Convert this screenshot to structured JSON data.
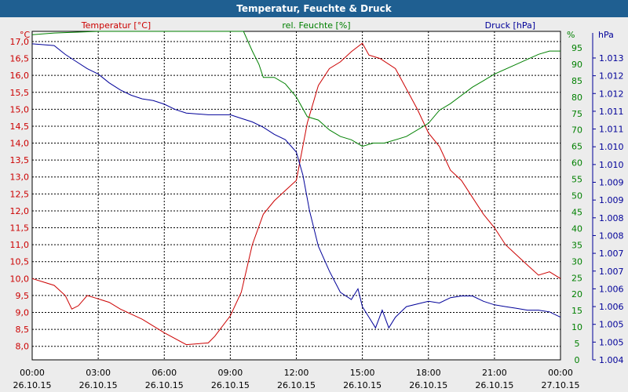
{
  "title": "Temperatur, Feuchte & Druck",
  "colors": {
    "temperature": "#cc0000",
    "humidity": "#008000",
    "pressure": "#000099",
    "titlebar": "#1f5f91",
    "background": "#ececec",
    "plot": "#ffffff"
  },
  "chart_data": {
    "type": "line",
    "title": "Temperatur, Feuchte & Druck",
    "x_ticks": [
      {
        "time": "00:00",
        "date": "26.10.15",
        "h": 0
      },
      {
        "time": "03:00",
        "date": "26.10.15",
        "h": 3
      },
      {
        "time": "06:00",
        "date": "26.10.15",
        "h": 6
      },
      {
        "time": "09:00",
        "date": "26.10.15",
        "h": 9
      },
      {
        "time": "12:00",
        "date": "26.10.15",
        "h": 12
      },
      {
        "time": "15:00",
        "date": "26.10.15",
        "h": 15
      },
      {
        "time": "18:00",
        "date": "26.10.15",
        "h": 18
      },
      {
        "time": "21:00",
        "date": "26.10.15",
        "h": 21
      },
      {
        "time": "00:00",
        "date": "27.10.15",
        "h": 24
      }
    ],
    "grid": true,
    "axes": {
      "temperature": {
        "label": "Temperatur [°C]",
        "unit": "°C",
        "side": "left",
        "ylim": [
          7.6,
          17.3
        ],
        "ticks": [
          "8,0",
          "8,5",
          "9,0",
          "9,5",
          "10,0",
          "10,5",
          "11,0",
          "11,5",
          "12,0",
          "12,5",
          "13,0",
          "13,5",
          "14,0",
          "14,5",
          "15,0",
          "15,5",
          "16,0",
          "16,5",
          "17,0"
        ]
      },
      "humidity": {
        "label": "rel. Feuchte [%]",
        "unit": "%",
        "side": "right",
        "ylim": [
          0,
          100
        ],
        "ticks": [
          "0",
          "5",
          "10",
          "15",
          "20",
          "25",
          "30",
          "35",
          "40",
          "45",
          "50",
          "55",
          "60",
          "65",
          "70",
          "75",
          "80",
          "85",
          "90",
          "95"
        ]
      },
      "pressure": {
        "label": "Druck [hPa]",
        "unit": "hPa",
        "side": "right",
        "ylim": [
          1004,
          1013.25
        ],
        "ticks": [
          "1.004",
          "1.005",
          "1.005",
          "1.006",
          "1.006",
          "1.007",
          "1.007",
          "1.008",
          "1.008",
          "1.009",
          "1.009",
          "1.010",
          "1.010",
          "1.011",
          "1.011",
          "1.012",
          "1.012",
          "1.013"
        ]
      }
    },
    "series": [
      {
        "name": "Temperatur [°C]",
        "axis": "temperature",
        "points": [
          [
            0,
            10.0
          ],
          [
            0.5,
            9.9
          ],
          [
            1.0,
            9.8
          ],
          [
            1.5,
            9.5
          ],
          [
            1.8,
            9.1
          ],
          [
            2.1,
            9.2
          ],
          [
            2.5,
            9.5
          ],
          [
            3.0,
            9.4
          ],
          [
            3.5,
            9.3
          ],
          [
            4.0,
            9.1
          ],
          [
            5.0,
            8.8
          ],
          [
            6.0,
            8.4
          ],
          [
            7.0,
            8.05
          ],
          [
            8.0,
            8.1
          ],
          [
            8.3,
            8.3
          ],
          [
            9.0,
            8.9
          ],
          [
            9.5,
            9.6
          ],
          [
            10.0,
            11.0
          ],
          [
            10.5,
            11.9
          ],
          [
            11.0,
            12.3
          ],
          [
            11.5,
            12.6
          ],
          [
            12.0,
            12.9
          ],
          [
            12.5,
            14.6
          ],
          [
            13.0,
            15.7
          ],
          [
            13.5,
            16.2
          ],
          [
            14.0,
            16.4
          ],
          [
            14.5,
            16.7
          ],
          [
            15.0,
            16.95
          ],
          [
            15.3,
            16.6
          ],
          [
            15.8,
            16.5
          ],
          [
            16.5,
            16.2
          ],
          [
            17.0,
            15.6
          ],
          [
            17.5,
            15.0
          ],
          [
            18.0,
            14.3
          ],
          [
            18.5,
            13.9
          ],
          [
            19.0,
            13.2
          ],
          [
            19.5,
            12.9
          ],
          [
            20.0,
            12.4
          ],
          [
            20.5,
            11.9
          ],
          [
            21.0,
            11.5
          ],
          [
            21.5,
            11.0
          ],
          [
            22.0,
            10.7
          ],
          [
            22.5,
            10.4
          ],
          [
            23.0,
            10.1
          ],
          [
            23.5,
            10.2
          ],
          [
            24.0,
            10.0
          ]
        ]
      },
      {
        "name": "rel. Feuchte [%]",
        "axis": "humidity",
        "points": [
          [
            0,
            99
          ],
          [
            1.0,
            99.5
          ],
          [
            3.0,
            100
          ],
          [
            6.0,
            100
          ],
          [
            9.0,
            100
          ],
          [
            9.6,
            100
          ],
          [
            10.0,
            94
          ],
          [
            10.3,
            90
          ],
          [
            10.5,
            86
          ],
          [
            11.0,
            86
          ],
          [
            11.5,
            84
          ],
          [
            12.0,
            80
          ],
          [
            12.5,
            74
          ],
          [
            13.0,
            73
          ],
          [
            13.5,
            70
          ],
          [
            14.0,
            68
          ],
          [
            14.5,
            67
          ],
          [
            15.0,
            65
          ],
          [
            15.5,
            66
          ],
          [
            16.0,
            66
          ],
          [
            17.0,
            68
          ],
          [
            18.0,
            72
          ],
          [
            18.5,
            76
          ],
          [
            19.0,
            78
          ],
          [
            20.0,
            83
          ],
          [
            20.5,
            85
          ],
          [
            21.0,
            87
          ],
          [
            22.0,
            90
          ],
          [
            23.0,
            93
          ],
          [
            23.5,
            94
          ],
          [
            24.0,
            94
          ]
        ]
      },
      {
        "name": "Druck [hPa]",
        "axis": "pressure",
        "points": [
          [
            0,
            1012.9
          ],
          [
            1.0,
            1012.85
          ],
          [
            1.5,
            1012.6
          ],
          [
            2.0,
            1012.4
          ],
          [
            2.5,
            1012.2
          ],
          [
            3.0,
            1012.05
          ],
          [
            3.5,
            1011.8
          ],
          [
            4.0,
            1011.6
          ],
          [
            4.5,
            1011.45
          ],
          [
            5.0,
            1011.35
          ],
          [
            5.5,
            1011.3
          ],
          [
            6.0,
            1011.2
          ],
          [
            6.5,
            1011.05
          ],
          [
            7.0,
            1010.95
          ],
          [
            8.0,
            1010.9
          ],
          [
            9.0,
            1010.9
          ],
          [
            9.5,
            1010.8
          ],
          [
            10.0,
            1010.7
          ],
          [
            10.5,
            1010.55
          ],
          [
            11.0,
            1010.35
          ],
          [
            11.5,
            1010.2
          ],
          [
            12.0,
            1009.85
          ],
          [
            12.3,
            1009.2
          ],
          [
            12.6,
            1008.2
          ],
          [
            13.0,
            1007.2
          ],
          [
            13.5,
            1006.5
          ],
          [
            14.0,
            1005.9
          ],
          [
            14.5,
            1005.7
          ],
          [
            14.8,
            1006.0
          ],
          [
            15.0,
            1005.5
          ],
          [
            15.3,
            1005.2
          ],
          [
            15.6,
            1004.9
          ],
          [
            15.9,
            1005.4
          ],
          [
            16.2,
            1004.9
          ],
          [
            16.5,
            1005.2
          ],
          [
            17.0,
            1005.5
          ],
          [
            18.0,
            1005.65
          ],
          [
            18.5,
            1005.6
          ],
          [
            19.0,
            1005.75
          ],
          [
            19.5,
            1005.8
          ],
          [
            20.0,
            1005.8
          ],
          [
            20.5,
            1005.65
          ],
          [
            21.0,
            1005.55
          ],
          [
            21.5,
            1005.5
          ],
          [
            22.0,
            1005.45
          ],
          [
            22.5,
            1005.4
          ],
          [
            23.0,
            1005.4
          ],
          [
            23.5,
            1005.35
          ],
          [
            24.0,
            1005.2
          ]
        ]
      }
    ]
  }
}
